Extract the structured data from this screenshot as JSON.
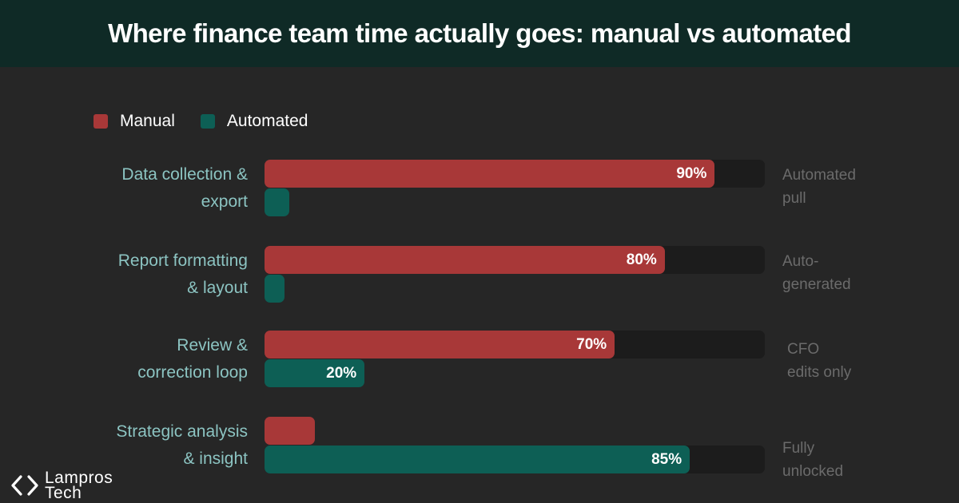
{
  "header": {
    "title": "Where finance team time actually goes: manual vs automated"
  },
  "logo": {
    "line1": "Lampros",
    "line2": "Tech"
  },
  "chart_data": {
    "type": "bar",
    "orientation": "horizontal",
    "xlim": [
      0,
      100
    ],
    "categories": [
      {
        "label_lines": [
          "Data collection &",
          "export"
        ],
        "note_lines": [
          "Automated",
          "pull"
        ]
      },
      {
        "label_lines": [
          "Report formatting",
          "& layout"
        ],
        "note_lines": [
          "Auto-",
          "generated"
        ]
      },
      {
        "label_lines": [
          "Review &",
          "correction loop"
        ],
        "note_lines": [
          "CFO",
          "edits only"
        ]
      },
      {
        "label_lines": [
          "Strategic analysis",
          "& insight"
        ],
        "note_lines": [
          "Fully",
          "unlocked"
        ]
      }
    ],
    "series": [
      {
        "name": "Manual",
        "color": "#a83838",
        "values": [
          90,
          80,
          70,
          10
        ],
        "labels": [
          "90%",
          "80%",
          "70%",
          ""
        ]
      },
      {
        "name": "Automated",
        "color": "#0d5f55",
        "values": [
          5,
          4,
          20,
          85
        ],
        "labels": [
          "",
          "",
          "20%",
          "85%"
        ]
      }
    ],
    "legend": "top-left",
    "grid": false
  }
}
